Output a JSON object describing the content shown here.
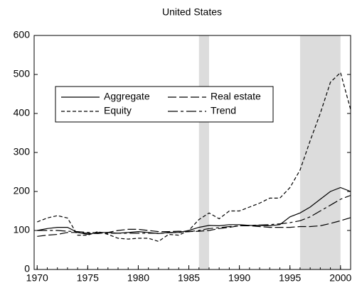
{
  "chart_data": {
    "type": "line",
    "title": "United States",
    "x": [
      1970,
      1971,
      1972,
      1973,
      1974,
      1975,
      1976,
      1977,
      1978,
      1979,
      1980,
      1981,
      1982,
      1983,
      1984,
      1985,
      1986,
      1987,
      1988,
      1989,
      1990,
      1991,
      1992,
      1993,
      1994,
      1995,
      1996,
      1997,
      1998,
      1999,
      2000,
      2001
    ],
    "series": [
      {
        "name": "Aggregate",
        "color": "#000000",
        "line_style": "solid",
        "values": [
          100,
          105,
          108,
          108,
          95,
          90,
          95,
          95,
          93,
          95,
          97,
          95,
          92,
          95,
          95,
          100,
          108,
          113,
          112,
          115,
          115,
          113,
          113,
          112,
          115,
          135,
          145,
          160,
          180,
          200,
          210,
          200
        ]
      },
      {
        "name": "Real estate",
        "color": "#000000",
        "line_style": "longdash",
        "values": [
          85,
          88,
          90,
          95,
          95,
          93,
          92,
          95,
          100,
          103,
          103,
          100,
          97,
          97,
          98,
          97,
          98,
          100,
          105,
          108,
          112,
          112,
          110,
          108,
          108,
          108,
          110,
          110,
          112,
          118,
          125,
          133
        ]
      },
      {
        "name": "Equity",
        "color": "#000000",
        "line_style": "dashed",
        "values": [
          122,
          132,
          138,
          132,
          88,
          88,
          97,
          90,
          80,
          78,
          80,
          80,
          72,
          90,
          88,
          100,
          128,
          145,
          130,
          150,
          150,
          160,
          170,
          183,
          183,
          210,
          255,
          330,
          400,
          480,
          505,
          410
        ]
      },
      {
        "name": "Trend",
        "color": "#000000",
        "line_style": "dashdot",
        "values": [
          100,
          100,
          100,
          98,
          97,
          95,
          94,
          93,
          93,
          93,
          93,
          93,
          93,
          94,
          95,
          97,
          100,
          105,
          107,
          110,
          112,
          113,
          114,
          115,
          117,
          120,
          125,
          135,
          150,
          165,
          180,
          190
        ]
      }
    ],
    "shaded_periods": [
      [
        1986,
        1987
      ],
      [
        1996,
        2000
      ]
    ],
    "shade_color": "#dcdcdc",
    "xlim": [
      1969.7,
      2001
    ],
    "xticks": [
      1970,
      1975,
      1980,
      1985,
      1990,
      1995,
      2000
    ],
    "ylim": [
      0,
      600
    ],
    "yticks": [
      0,
      100,
      200,
      300,
      400,
      500,
      600
    ],
    "legend": "upper left",
    "grid": false
  }
}
